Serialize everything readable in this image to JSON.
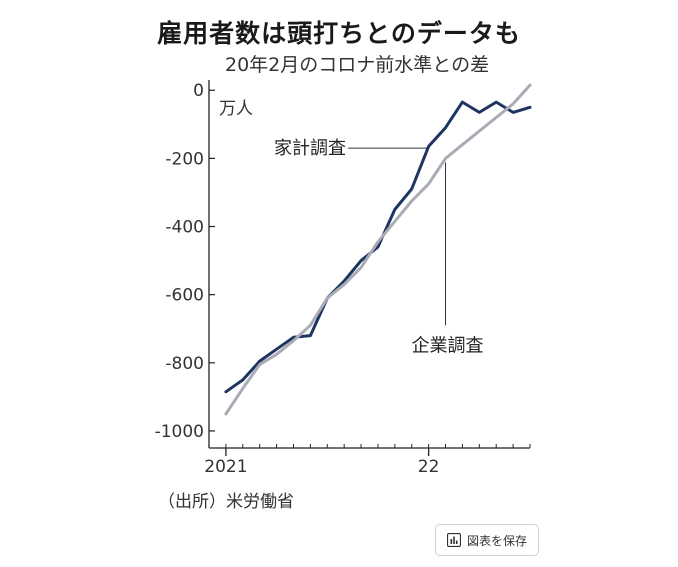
{
  "title": "雇用者数は頭打ちとのデータも",
  "subtitle": "20年2月のコロナ前水準との差",
  "source": "（出所）米労働省",
  "save_button": {
    "label": "図表を保存",
    "icon": "bar-chart-icon"
  },
  "chart_data": {
    "type": "line",
    "unit_label": "万人",
    "ylim": [
      -1050,
      30
    ],
    "yticks": [
      0,
      -200,
      -400,
      -600,
      -800,
      -1000
    ],
    "ytick_labels": [
      "0",
      "-200",
      "-400",
      "-600",
      "-800",
      "-1000"
    ],
    "xticks": [
      {
        "x": "2021-01",
        "label": "2021"
      },
      {
        "x": "2022-01",
        "label": "22"
      }
    ],
    "x_range": [
      "2020-12",
      "2022-07"
    ],
    "series": [
      {
        "name": "家計調査",
        "color": "#1e3461",
        "points": [
          {
            "x": "2021-01",
            "y": -885
          },
          {
            "x": "2021-02",
            "y": -850
          },
          {
            "x": "2021-03",
            "y": -795
          },
          {
            "x": "2021-04",
            "y": -760
          },
          {
            "x": "2021-05",
            "y": -725
          },
          {
            "x": "2021-06",
            "y": -720
          },
          {
            "x": "2021-07",
            "y": -610
          },
          {
            "x": "2021-08",
            "y": -560
          },
          {
            "x": "2021-09",
            "y": -500
          },
          {
            "x": "2021-10",
            "y": -460
          },
          {
            "x": "2021-11",
            "y": -350
          },
          {
            "x": "2021-12",
            "y": -290
          },
          {
            "x": "2022-01",
            "y": -165
          },
          {
            "x": "2022-02",
            "y": -110
          },
          {
            "x": "2022-03",
            "y": -35
          },
          {
            "x": "2022-04",
            "y": -65
          },
          {
            "x": "2022-05",
            "y": -35
          },
          {
            "x": "2022-06",
            "y": -65
          },
          {
            "x": "2022-07",
            "y": -50
          }
        ]
      },
      {
        "name": "企業調査",
        "color": "#a9acb5",
        "points": [
          {
            "x": "2021-01",
            "y": -950
          },
          {
            "x": "2021-02",
            "y": -875
          },
          {
            "x": "2021-03",
            "y": -805
          },
          {
            "x": "2021-04",
            "y": -775
          },
          {
            "x": "2021-05",
            "y": -735
          },
          {
            "x": "2021-06",
            "y": -690
          },
          {
            "x": "2021-07",
            "y": -610
          },
          {
            "x": "2021-08",
            "y": -570
          },
          {
            "x": "2021-09",
            "y": -520
          },
          {
            "x": "2021-10",
            "y": -445
          },
          {
            "x": "2021-11",
            "y": -385
          },
          {
            "x": "2021-12",
            "y": -325
          },
          {
            "x": "2022-01",
            "y": -275
          },
          {
            "x": "2022-02",
            "y": -200
          },
          {
            "x": "2022-03",
            "y": -160
          },
          {
            "x": "2022-04",
            "y": -120
          },
          {
            "x": "2022-05",
            "y": -80
          },
          {
            "x": "2022-06",
            "y": -40
          },
          {
            "x": "2022-07",
            "y": 15
          }
        ]
      }
    ],
    "annotations": [
      {
        "text": "家計調査",
        "series": "家計調査",
        "anchor_x": "2022-01"
      },
      {
        "text": "企業調査",
        "series": "企業調査",
        "anchor_x": "2022-02"
      }
    ],
    "grid": false,
    "legend": "none"
  }
}
